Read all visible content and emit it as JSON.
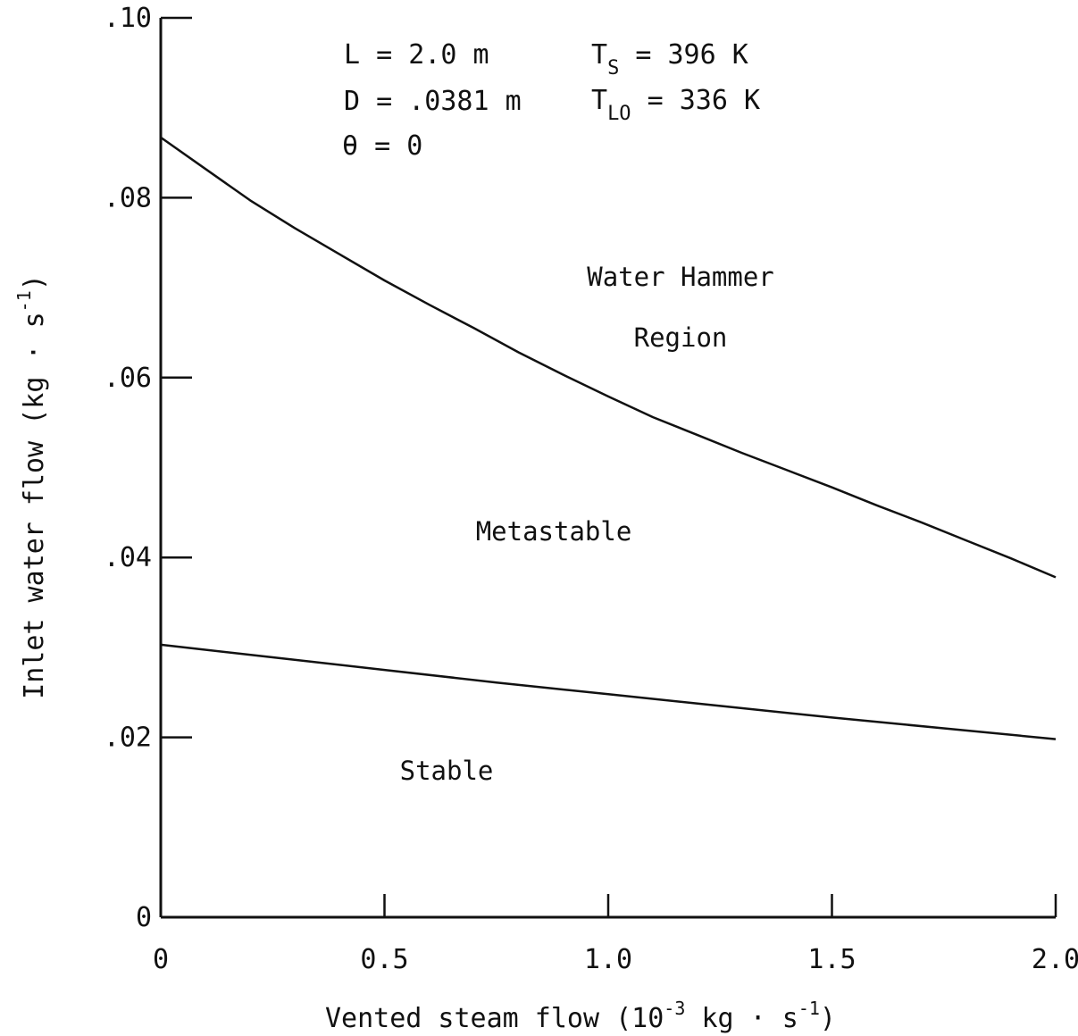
{
  "chart_data": {
    "type": "line",
    "xlabel": {
      "prefix": "Vented steam flow (10",
      "exp1": "-3",
      "middle": " kg · s",
      "exp2": "-1",
      "suffix": ")"
    },
    "ylabel": {
      "prefix": "Inlet water flow (kg · s",
      "exp": "-1",
      "suffix": ")"
    },
    "xlim": [
      0,
      2.0
    ],
    "ylim": [
      0,
      0.1
    ],
    "x_ticks": [
      {
        "value": 0,
        "label": "0"
      },
      {
        "value": 0.5,
        "label": "0.5"
      },
      {
        "value": 1.0,
        "label": "1.0"
      },
      {
        "value": 1.5,
        "label": "1.5"
      },
      {
        "value": 2.0,
        "label": "2.0"
      }
    ],
    "y_ticks": [
      {
        "value": 0,
        "label": "0"
      },
      {
        "value": 0.02,
        "label": ".02"
      },
      {
        "value": 0.04,
        "label": ".04"
      },
      {
        "value": 0.06,
        "label": ".06"
      },
      {
        "value": 0.08,
        "label": ".08"
      },
      {
        "value": 0.1,
        "label": ".10"
      }
    ],
    "grid": false,
    "series": [
      {
        "x": [
          0,
          0.1,
          0.2,
          0.3,
          0.4,
          0.5,
          0.6,
          0.7,
          0.8,
          0.9,
          1.0,
          1.1,
          1.2,
          1.3,
          1.4,
          1.5,
          1.6,
          1.7,
          1.8,
          1.9,
          2.0
        ],
        "y": [
          0.0867,
          0.0832,
          0.0797,
          0.0766,
          0.0737,
          0.0708,
          0.0681,
          0.0655,
          0.0628,
          0.0603,
          0.0579,
          0.0556,
          0.0536,
          0.0516,
          0.0497,
          0.0478,
          0.0458,
          0.0439,
          0.0419,
          0.0399,
          0.0378
        ]
      },
      {
        "x": [
          0,
          0.25,
          0.5,
          0.75,
          1.0,
          1.25,
          1.5,
          1.75,
          2.0
        ],
        "y": [
          0.0303,
          0.0289,
          0.0275,
          0.0261,
          0.0248,
          0.0235,
          0.0222,
          0.021,
          0.0198
        ]
      }
    ],
    "annotations": {
      "params": [
        {
          "id": "L",
          "base": "L = 2.0 m"
        },
        {
          "id": "D",
          "base": "D = .0381 m"
        },
        {
          "id": "theta",
          "base": "θ = 0"
        },
        {
          "id": "TS",
          "base": "T",
          "sub": "S",
          "rest": " = 396 K"
        },
        {
          "id": "TLO",
          "base": "T",
          "sub": "LO",
          "rest": " = 336 K"
        }
      ],
      "regions": [
        {
          "id": "water-hammer",
          "lines": [
            "Water Hammer",
            "Region"
          ]
        },
        {
          "id": "metastable",
          "lines": [
            "Metastable"
          ]
        },
        {
          "id": "stable",
          "lines": [
            "Stable"
          ]
        }
      ]
    }
  }
}
